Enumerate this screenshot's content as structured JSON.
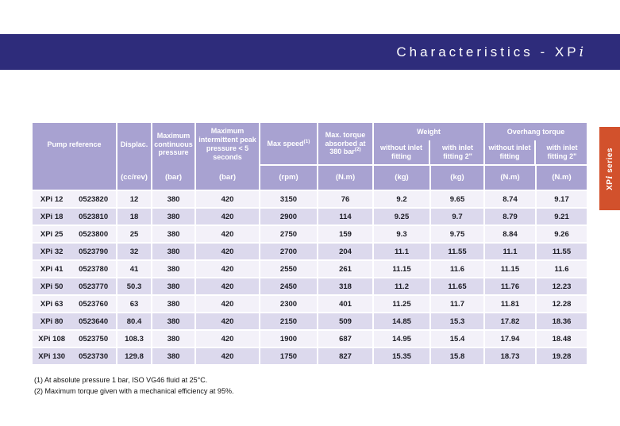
{
  "banner": {
    "title_prefix": "Characteristics - XP",
    "title_i": "i"
  },
  "side_tab": {
    "label_prefix": "XP",
    "label_i": "i",
    "label_suffix": " series"
  },
  "table": {
    "header": {
      "pump_reference": "Pump reference",
      "displacement": {
        "label": "Displac.",
        "unit": "(cc/rev)"
      },
      "max_continuous_pressure": {
        "label": "Maximum continuous pressure",
        "unit": "(bar)"
      },
      "max_intermittent_pressure": {
        "label": "Maximum intermittent peak pressure < 5 seconds",
        "unit": "(bar)"
      },
      "max_speed": {
        "label": "Max speed",
        "sup": "(1)",
        "unit": "(rpm)"
      },
      "max_torque": {
        "label": "Max. torque absorbed at 380 bar",
        "sup": "(2)",
        "unit": "(N.m)"
      },
      "weight": {
        "label": "Weight",
        "without": "without inlet fitting",
        "with": "with inlet fitting 2\"",
        "unit_without": "(kg)",
        "unit_with": "(kg)"
      },
      "overhang_torque": {
        "label": "Overhang torque",
        "without": "without inlet fitting",
        "with": "with inlet fitting 2\"",
        "unit_without": "(N.m)",
        "unit_with": "(N.m)"
      }
    },
    "rows": [
      {
        "name": "XPi 12",
        "code": "0523820",
        "displacement": "12",
        "continuous": "380",
        "intermittent": "420",
        "speed": "3150",
        "torque": "76",
        "weight_without": "9.2",
        "weight_with": "9.65",
        "overhang_without": "8.74",
        "overhang_with": "9.17"
      },
      {
        "name": "XPi 18",
        "code": "0523810",
        "displacement": "18",
        "continuous": "380",
        "intermittent": "420",
        "speed": "2900",
        "torque": "114",
        "weight_without": "9.25",
        "weight_with": "9.7",
        "overhang_without": "8.79",
        "overhang_with": "9.21"
      },
      {
        "name": "XPi 25",
        "code": "0523800",
        "displacement": "25",
        "continuous": "380",
        "intermittent": "420",
        "speed": "2750",
        "torque": "159",
        "weight_without": "9.3",
        "weight_with": "9.75",
        "overhang_without": "8.84",
        "overhang_with": "9.26"
      },
      {
        "name": "XPi 32",
        "code": "0523790",
        "displacement": "32",
        "continuous": "380",
        "intermittent": "420",
        "speed": "2700",
        "torque": "204",
        "weight_without": "11.1",
        "weight_with": "11.55",
        "overhang_without": "11.1",
        "overhang_with": "11.55"
      },
      {
        "name": "XPi 41",
        "code": "0523780",
        "displacement": "41",
        "continuous": "380",
        "intermittent": "420",
        "speed": "2550",
        "torque": "261",
        "weight_without": "11.15",
        "weight_with": "11.6",
        "overhang_without": "11.15",
        "overhang_with": "11.6"
      },
      {
        "name": "XPi 50",
        "code": "0523770",
        "displacement": "50.3",
        "continuous": "380",
        "intermittent": "420",
        "speed": "2450",
        "torque": "318",
        "weight_without": "11.2",
        "weight_with": "11.65",
        "overhang_without": "11.76",
        "overhang_with": "12.23"
      },
      {
        "name": "XPi 63",
        "code": "0523760",
        "displacement": "63",
        "continuous": "380",
        "intermittent": "420",
        "speed": "2300",
        "torque": "401",
        "weight_without": "11.25",
        "weight_with": "11.7",
        "overhang_without": "11.81",
        "overhang_with": "12.28"
      },
      {
        "name": "XPi 80",
        "code": "0523640",
        "displacement": "80.4",
        "continuous": "380",
        "intermittent": "420",
        "speed": "2150",
        "torque": "509",
        "weight_without": "14.85",
        "weight_with": "15.3",
        "overhang_without": "17.82",
        "overhang_with": "18.36"
      },
      {
        "name": "XPi 108",
        "code": "0523750",
        "displacement": "108.3",
        "continuous": "380",
        "intermittent": "420",
        "speed": "1900",
        "torque": "687",
        "weight_without": "14.95",
        "weight_with": "15.4",
        "overhang_without": "17.94",
        "overhang_with": "18.48"
      },
      {
        "name": "XPi 130",
        "code": "0523730",
        "displacement": "129.8",
        "continuous": "380",
        "intermittent": "420",
        "speed": "1750",
        "torque": "827",
        "weight_without": "15.35",
        "weight_with": "15.8",
        "overhang_without": "18.73",
        "overhang_with": "19.28"
      }
    ]
  },
  "footnotes": [
    "(1) At absolute pressure 1 bar, ISO VG46 fluid at 25°C.",
    "(2) Maximum torque given with a mechanical efficiency at 95%."
  ],
  "colors": {
    "banner_navy": "#2e2c7b",
    "header_lavender": "#a8a2d1",
    "row_light": "#f3f1f9",
    "row_dark": "#dcd9ed",
    "tab_orange": "#d2512c"
  }
}
